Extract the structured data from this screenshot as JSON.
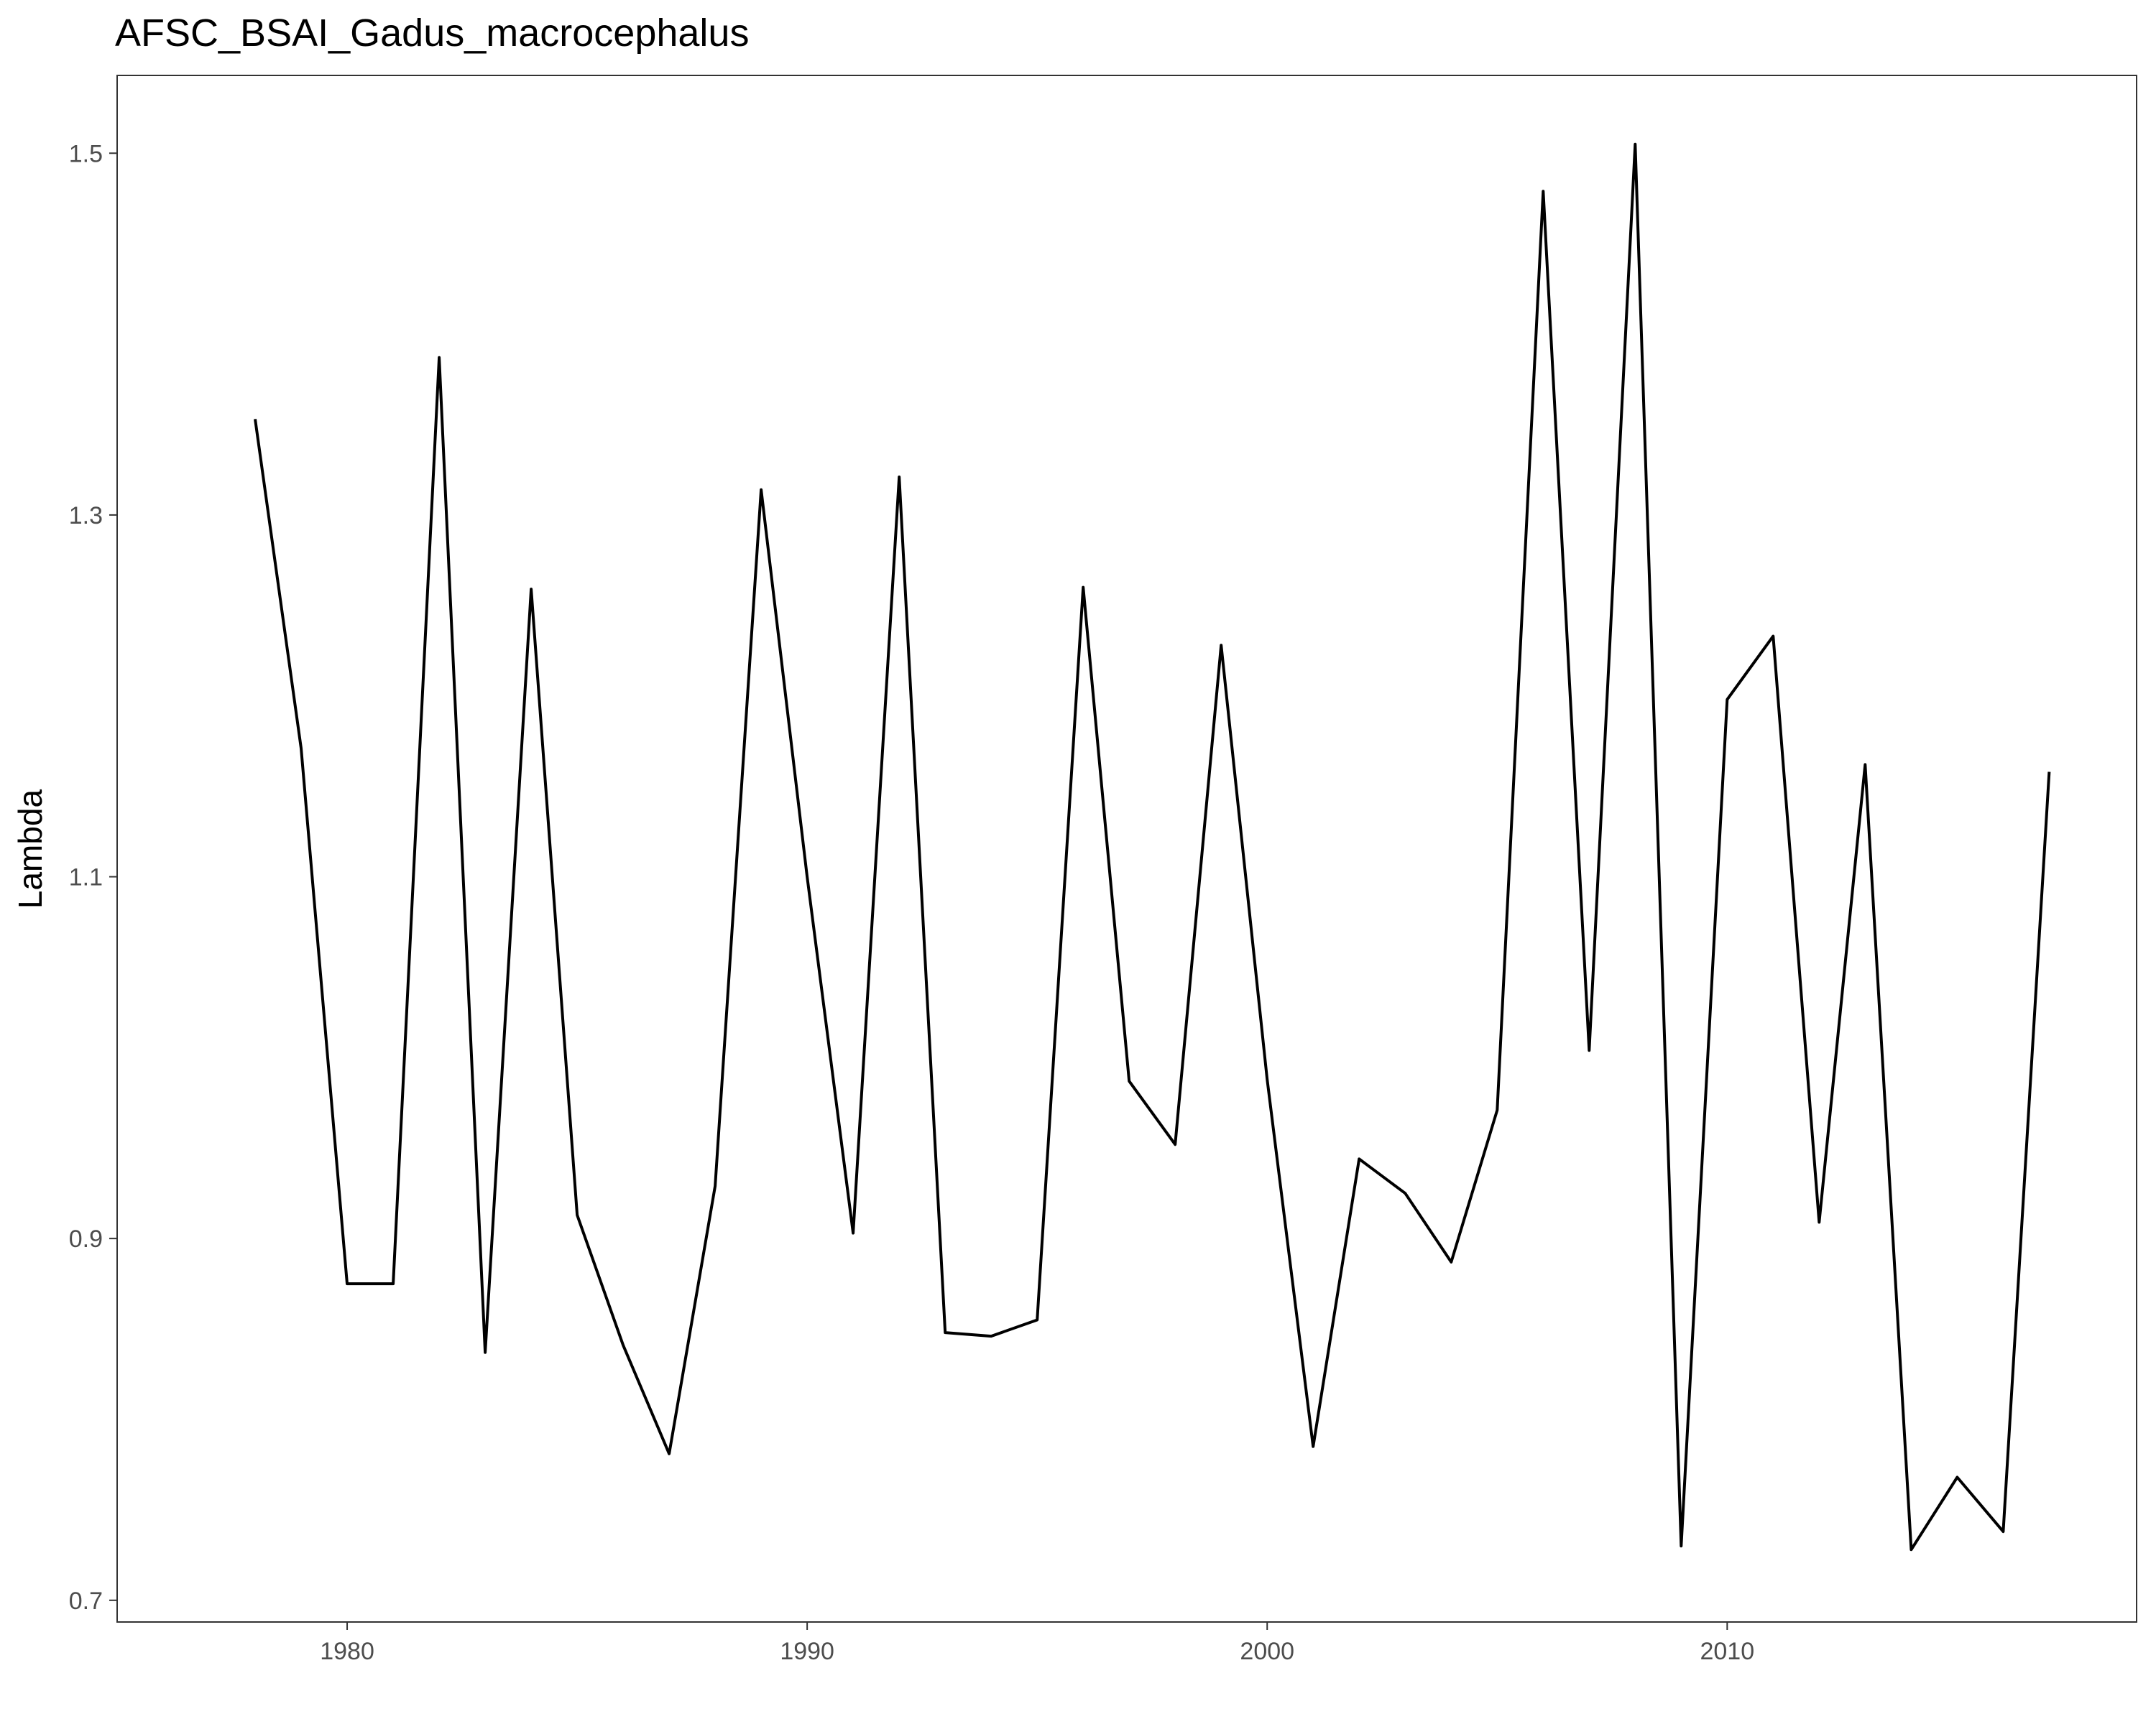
{
  "chart_data": {
    "type": "line",
    "title": "AFSC_BSAI_Gadus_macrocephalus",
    "xlabel": "",
    "ylabel": "Lambda",
    "xlim": [
      1975.0,
      2018.9
    ],
    "ylim": [
      0.688,
      1.543
    ],
    "xticks": [
      {
        "value": 1980,
        "label": "1980"
      },
      {
        "value": 1990,
        "label": "1990"
      },
      {
        "value": 2000,
        "label": "2000"
      },
      {
        "value": 2010,
        "label": "2010"
      }
    ],
    "yticks": [
      {
        "value": 0.7,
        "label": "0.7"
      },
      {
        "value": 0.9,
        "label": "0.9"
      },
      {
        "value": 1.1,
        "label": "1.1"
      },
      {
        "value": 1.3,
        "label": "1.3"
      },
      {
        "value": 1.5,
        "label": "1.5"
      }
    ],
    "grid": false,
    "legend": "none",
    "line_color": "#000000",
    "x": [
      1978,
      1979,
      1980,
      1981,
      1982,
      1983,
      1984,
      1985,
      1986,
      1987,
      1988,
      1989,
      1990,
      1991,
      1992,
      1993,
      1994,
      1995,
      1996,
      1997,
      1998,
      1999,
      2000,
      2001,
      2002,
      2003,
      2004,
      2005,
      2006,
      2007,
      2008,
      2009,
      2010,
      2011,
      2012,
      2013,
      2014,
      2015,
      2016,
      2017
    ],
    "y": [
      1.353,
      1.171,
      0.875,
      0.875,
      1.387,
      0.837,
      1.259,
      0.913,
      0.841,
      0.781,
      0.929,
      1.314,
      1.1,
      0.903,
      1.321,
      0.848,
      0.846,
      0.855,
      1.26,
      0.987,
      0.952,
      1.228,
      0.988,
      0.785,
      0.944,
      0.925,
      0.887,
      0.971,
      1.479,
      1.004,
      1.505,
      0.73,
      1.198,
      1.233,
      0.909,
      1.162,
      0.728,
      0.768,
      0.738,
      1.158
    ]
  }
}
